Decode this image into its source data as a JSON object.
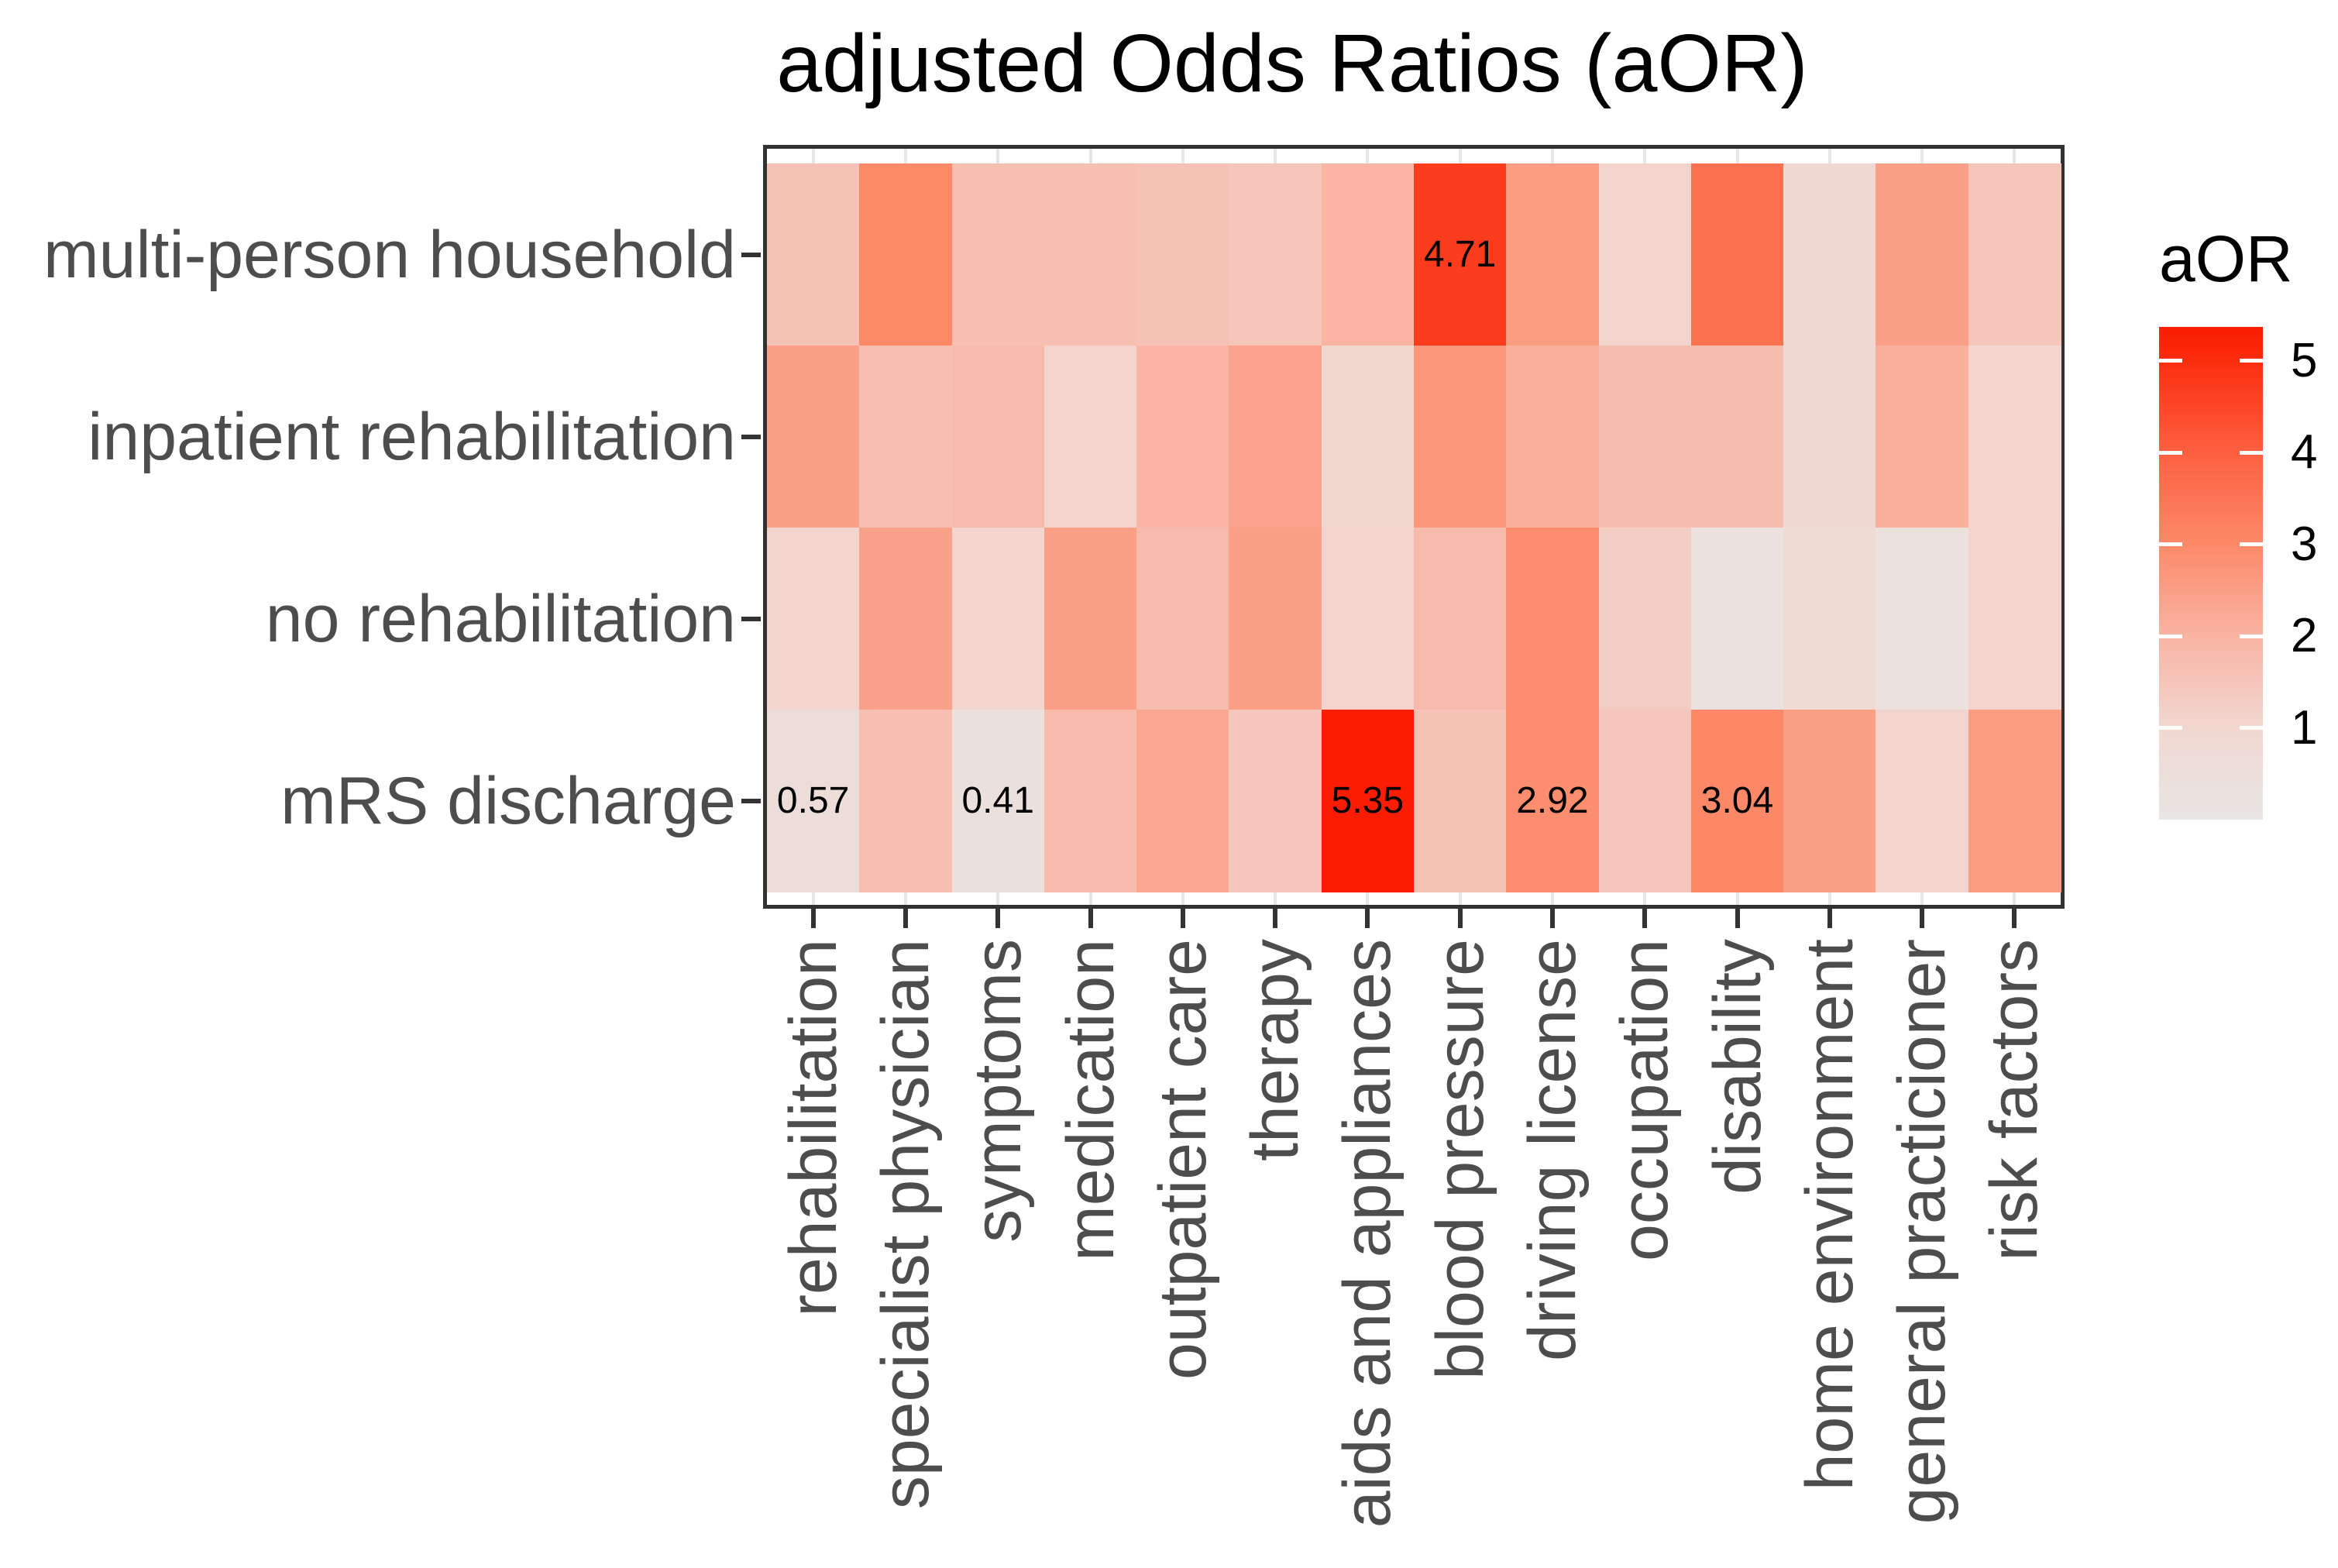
{
  "title": "adjusted Odds Ratios (aOR)",
  "chart_data": {
    "type": "heatmap",
    "title": "adjusted Odds Ratios (aOR)",
    "rows": [
      "multi-person household",
      "inpatient rehabilitation",
      "no rehabilitation",
      "mRS discharge"
    ],
    "columns": [
      "rehabilitation",
      "specialist physician",
      "symptoms",
      "medication",
      "outpatient care",
      "therapy",
      "aids and appliances",
      "blood pressure",
      "driving license",
      "occupation",
      "disability",
      "home environment",
      "general practicioner",
      "risk factors"
    ],
    "values": [
      [
        1.6,
        3.0,
        1.7,
        1.7,
        1.6,
        1.5,
        2.0,
        4.71,
        2.55,
        1.1,
        3.6,
        0.9,
        2.5,
        1.5
      ],
      [
        2.5,
        1.7,
        1.8,
        1.1,
        2.0,
        2.4,
        1.0,
        2.7,
        2.1,
        1.75,
        1.75,
        0.85,
        2.1,
        1.05
      ],
      [
        1.05,
        2.45,
        1.05,
        2.5,
        1.8,
        2.5,
        1.1,
        1.8,
        2.9,
        1.3,
        0.3,
        0.8,
        0.3,
        1.1
      ],
      [
        0.57,
        1.7,
        0.41,
        1.8,
        2.3,
        1.45,
        5.35,
        1.6,
        2.92,
        1.45,
        3.04,
        2.5,
        1.05,
        2.55
      ]
    ],
    "annotations": [
      {
        "row": 0,
        "col": 7,
        "text": "4.71"
      },
      {
        "row": 3,
        "col": 0,
        "text": "0.57"
      },
      {
        "row": 3,
        "col": 2,
        "text": "0.41"
      },
      {
        "row": 3,
        "col": 6,
        "text": "5.35"
      },
      {
        "row": 3,
        "col": 8,
        "text": "2.92"
      },
      {
        "row": 3,
        "col": 10,
        "text": "3.04"
      }
    ],
    "legend": {
      "title": "aOR",
      "ticks": [
        1,
        2,
        3,
        4,
        5
      ],
      "range": [
        0,
        5.37
      ],
      "position": "right"
    },
    "color_scale": {
      "stops": [
        {
          "value": 0,
          "color": "#e8e6e4"
        },
        {
          "value": 1,
          "color": "#f1d7d0"
        },
        {
          "value": 2,
          "color": "#f9b4a3"
        },
        {
          "value": 3,
          "color": "#fc8a69"
        },
        {
          "value": 4,
          "color": "#fc6040"
        },
        {
          "value": 5,
          "color": "#fb2d0e"
        },
        {
          "value": 5.37,
          "color": "#fa1b02"
        }
      ]
    },
    "grid": "light vertical segments at category centers in panel margins",
    "xlabel": "",
    "ylabel": ""
  },
  "colors": {
    "panel_border": "#313131",
    "tick": "#333333",
    "axis_text": "#4d4d4d",
    "title_text": "#000000",
    "gridline": "#e7e7e7",
    "background": "#ffffff"
  }
}
